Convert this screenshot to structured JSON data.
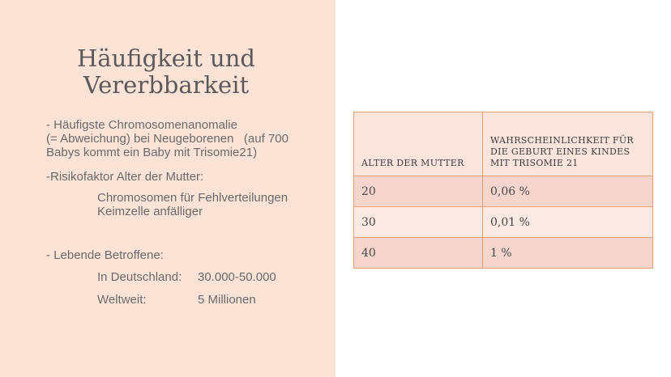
{
  "slide": {
    "title_line1": "Häufigkeit und",
    "title_line2": "Vererbbarkeit",
    "bullet1_line1": "- Häufigste Chromosomenanomalie",
    "bullet1_line2": "(= Abweichung) bei Neugeborenen   (auf 700",
    "bullet1_line3": "Babys kommt ein Baby mit Trisomie21)",
    "bullet2": "-Risikofaktor Alter der Mutter:",
    "sub_line1": "Chromosomen für Fehlverteilungen",
    "sub_line2": "Keimzelle anfälliger",
    "bullet3": "- Lebende Betroffene:",
    "affected": [
      {
        "label": "In Deutschland:",
        "value": "30.000-50.000"
      },
      {
        "label": "Weltweit:",
        "value": "5 Millionen"
      }
    ]
  },
  "table": {
    "header_col1": "ALTER DER MUTTER",
    "header_col2_line1": "WAHRSCHEINLICHKEIT FÜR",
    "header_col2_line2": "DIE GEBURT EINES KINDES",
    "header_col2_line3": "MIT TRISOMIE 21",
    "rows": [
      {
        "age": "20",
        "probability": "0,06 %"
      },
      {
        "age": "30",
        "probability": "0,01 %"
      },
      {
        "age": "40",
        "probability": "1 %"
      }
    ]
  }
}
